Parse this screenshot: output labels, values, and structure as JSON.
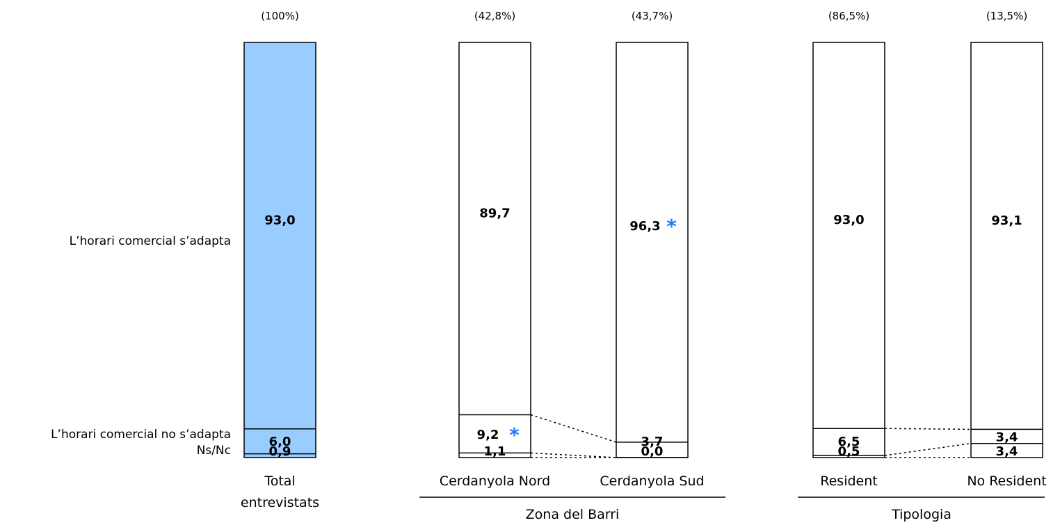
{
  "chart_data": {
    "type": "bar",
    "stacked": true,
    "percent_stacked": true,
    "ylim": [
      0,
      100
    ],
    "colors": {
      "filled": "#99ccff",
      "empty": "#ffffff",
      "outline": "#000000",
      "star": "#1e78ff"
    },
    "row_labels": [
      "L’horari comercial s’adapta",
      "L’horari comercial no s’adapta",
      "Ns/Nc"
    ],
    "columns": [
      {
        "key": "total",
        "category": "Total entrevistats",
        "category_lines": [
          "Total",
          "entrevistats"
        ],
        "share": "(100%)",
        "filled": true,
        "group": ""
      },
      {
        "key": "nord",
        "category": "Cerdanyola Nord",
        "category_lines": [
          "Cerdanyola Nord"
        ],
        "share": "(42,8%)",
        "filled": false,
        "group": "Zona del Barri"
      },
      {
        "key": "sud",
        "category": "Cerdanyola Sud",
        "category_lines": [
          "Cerdanyola Sud"
        ],
        "share": "(43,7%)",
        "filled": false,
        "group": "Zona del Barri"
      },
      {
        "key": "resident",
        "category": "Resident",
        "category_lines": [
          "Resident"
        ],
        "share": "(86,5%)",
        "filled": false,
        "group": "Tipologia"
      },
      {
        "key": "noresident",
        "category": "No Resident",
        "category_lines": [
          "No Resident"
        ],
        "share": "(13,5%)",
        "filled": false,
        "group": "Tipologia"
      }
    ],
    "series": [
      {
        "name": "L’horari comercial s’adapta",
        "values": [
          93.0,
          89.7,
          96.3,
          93.0,
          93.1
        ],
        "labels": [
          "93,0",
          "89,7",
          "96,3",
          "93,0",
          "93,1"
        ],
        "significant": [
          false,
          false,
          true,
          false,
          false
        ]
      },
      {
        "name": "L’horari comercial no s’adapta",
        "values": [
          6.0,
          9.2,
          3.7,
          6.5,
          3.4
        ],
        "labels": [
          "6,0",
          "9,2",
          "3,7",
          "6,5",
          "3,4"
        ],
        "significant": [
          false,
          true,
          false,
          false,
          false
        ]
      },
      {
        "name": "Ns/Nc",
        "values": [
          0.9,
          1.1,
          0.0,
          0.5,
          3.4
        ],
        "labels": [
          "0,9",
          "1,1",
          "0,0",
          "0,5",
          "3,4"
        ],
        "significant": [
          false,
          false,
          false,
          false,
          false
        ]
      }
    ],
    "significance_marker": "*",
    "groups": [
      {
        "name": "Zona del Barri",
        "columns": [
          "nord",
          "sud"
        ]
      },
      {
        "name": "Tipologia",
        "columns": [
          "resident",
          "noresident"
        ]
      }
    ]
  }
}
